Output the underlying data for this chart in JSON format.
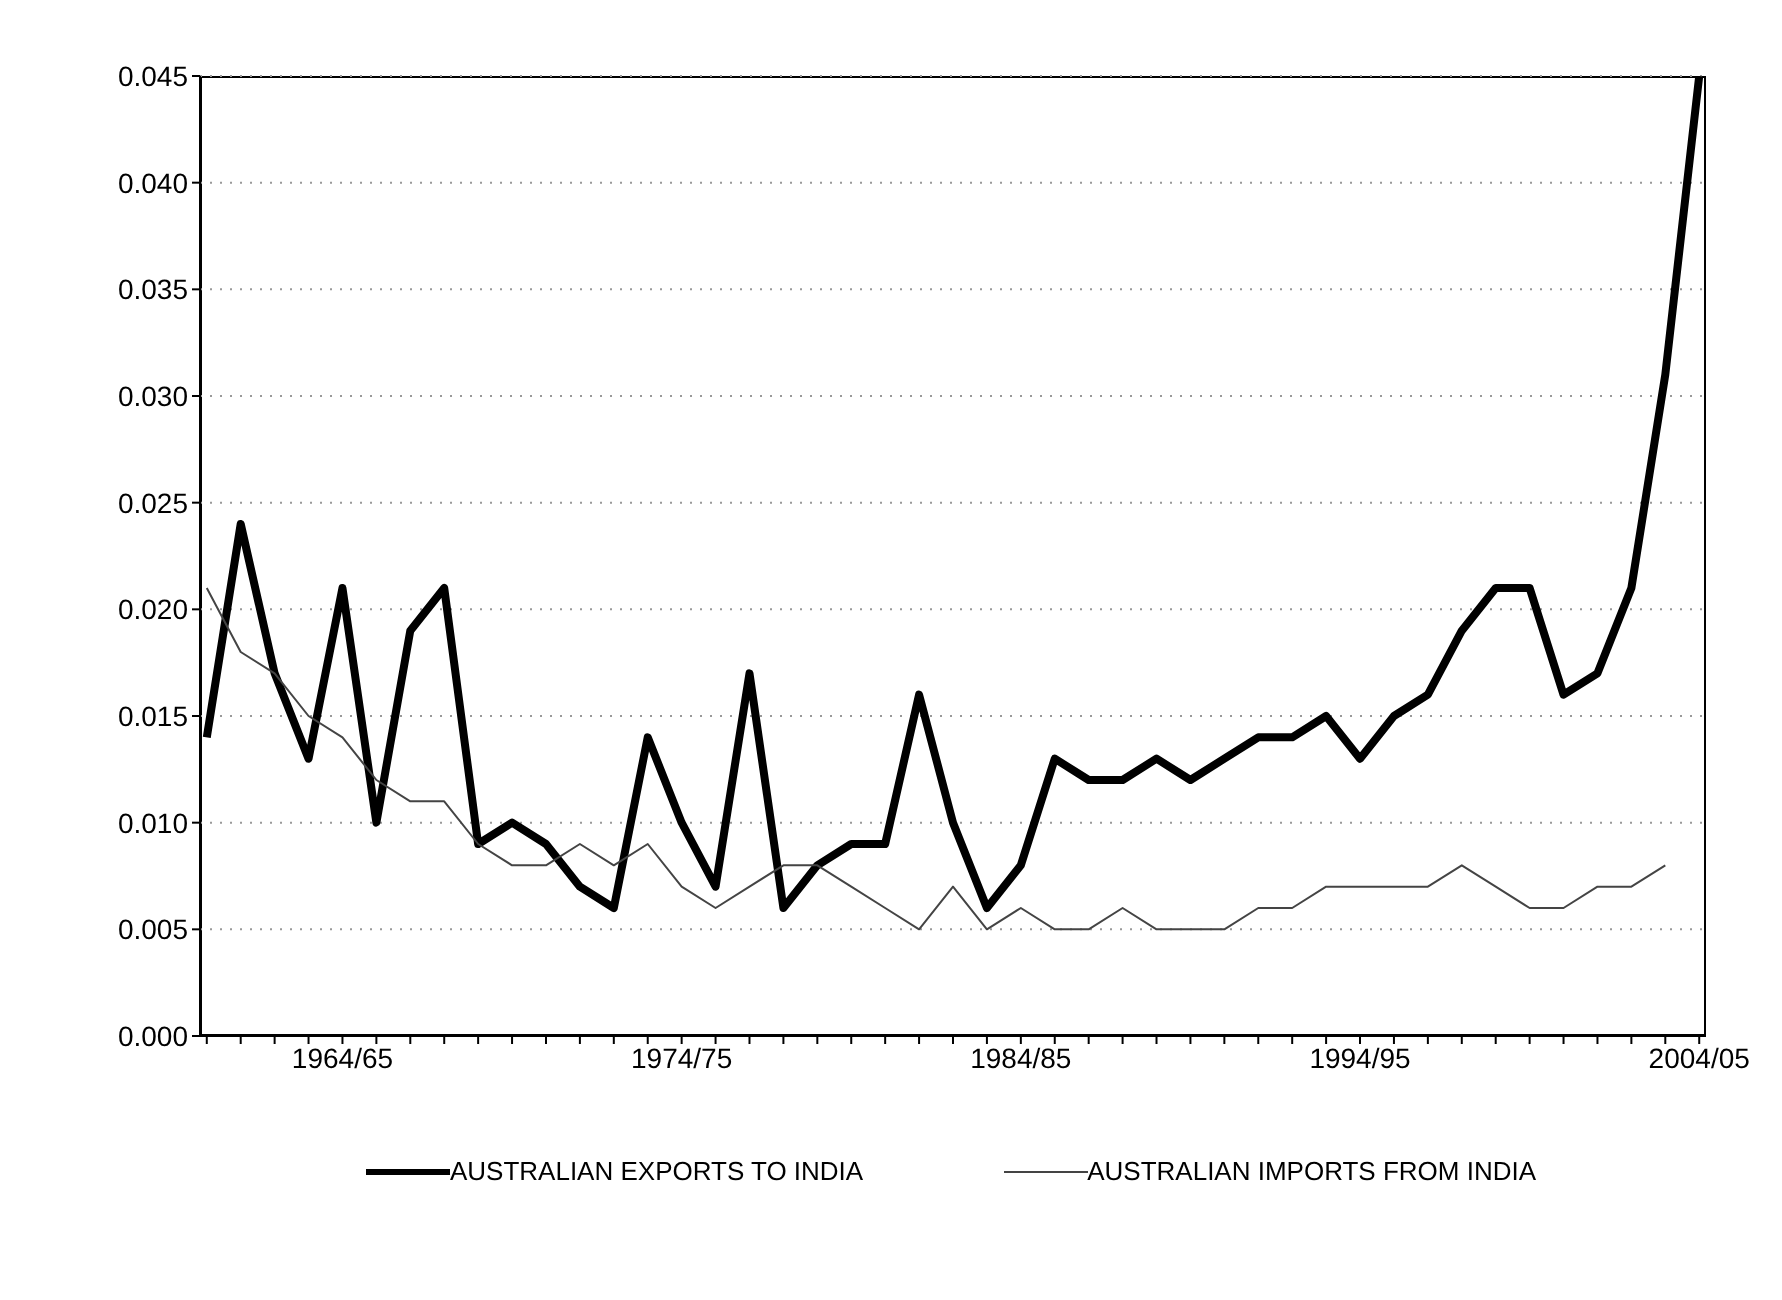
{
  "chart_data": {
    "type": "line",
    "categories": [
      null,
      null,
      null,
      null,
      "1964/65",
      null,
      null,
      null,
      null,
      null,
      null,
      null,
      null,
      null,
      "1974/75",
      null,
      null,
      null,
      null,
      null,
      null,
      null,
      null,
      null,
      "1984/85",
      null,
      null,
      null,
      null,
      null,
      null,
      null,
      null,
      null,
      "1994/95",
      null,
      null,
      null,
      null,
      null,
      null,
      null,
      null,
      null,
      "2004/05"
    ],
    "series": [
      {
        "name": "AUSTRALIAN EXPORTS TO INDIA",
        "color": "#000000",
        "values": [
          0.014,
          0.024,
          0.017,
          0.013,
          0.021,
          0.01,
          0.019,
          0.021,
          0.009,
          0.01,
          0.009,
          0.007,
          0.006,
          0.014,
          0.01,
          0.007,
          0.017,
          0.006,
          0.008,
          0.009,
          0.009,
          0.016,
          0.01,
          0.006,
          0.008,
          0.013,
          0.012,
          0.012,
          0.013,
          0.012,
          0.013,
          0.014,
          0.014,
          0.015,
          0.013,
          0.015,
          0.016,
          0.019,
          0.021,
          0.021,
          0.016,
          0.017,
          0.021,
          0.031,
          0.045
        ]
      },
      {
        "name": "AUSTRALIAN IMPORTS FROM INDIA",
        "color": "#444444",
        "values": [
          0.021,
          0.018,
          0.017,
          0.015,
          0.014,
          0.012,
          0.011,
          0.011,
          0.009,
          0.008,
          0.008,
          0.009,
          0.008,
          0.009,
          0.007,
          0.006,
          0.007,
          0.008,
          0.008,
          0.007,
          0.006,
          0.005,
          0.007,
          0.005,
          0.006,
          0.005,
          0.005,
          0.006,
          0.005,
          0.005,
          0.005,
          0.006,
          0.006,
          0.007,
          0.007,
          0.007,
          0.007,
          0.008,
          0.007,
          0.006,
          0.006,
          0.007,
          0.007,
          0.008,
          null
        ]
      }
    ],
    "ylim": [
      0,
      0.045
    ],
    "yticks": [
      {
        "value": 0,
        "label": "0.000"
      },
      {
        "value": 0.005,
        "label": "0.005"
      },
      {
        "value": 0.01,
        "label": "0.010"
      },
      {
        "value": 0.015,
        "label": "0.015"
      },
      {
        "value": 0.02,
        "label": "0.020"
      },
      {
        "value": 0.025,
        "label": "0.025"
      },
      {
        "value": 0.03,
        "label": "0.030"
      },
      {
        "value": 0.035,
        "label": "0.035"
      },
      {
        "value": 0.04,
        "label": "0.040"
      },
      {
        "value": 0.045,
        "label": "0.045"
      }
    ],
    "grid": "y",
    "legend": "bottom"
  }
}
